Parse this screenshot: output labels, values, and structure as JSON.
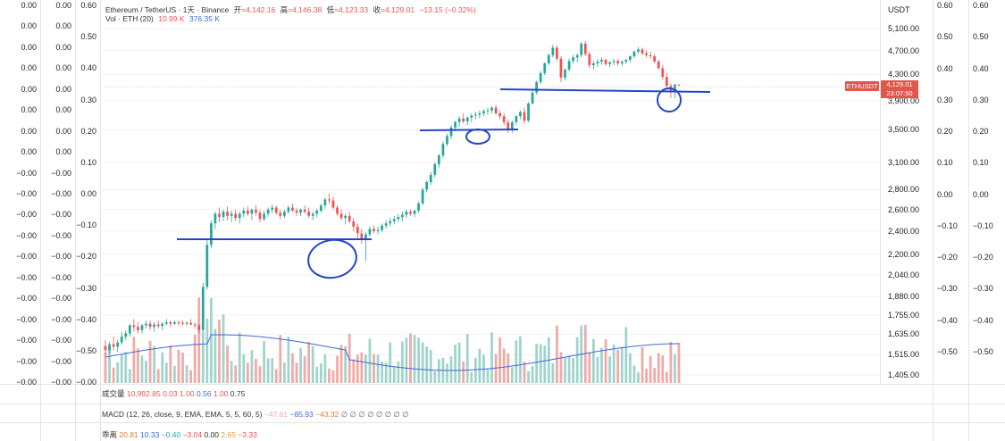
{
  "header": {
    "symbol": "Ethereum / TetherUS · 1天 · Binance",
    "open_label": "开",
    "open_value": "=4,142.16",
    "high_label": "高",
    "high_value": "=4,146.38",
    "low_label": "低",
    "low_value": "=4,123.33",
    "close_label": "收",
    "close_value": "=4,129.01",
    "change": "−13.15 (−0.32%)",
    "vol_label": "Vol · ETH (20)",
    "vol_value": "10.99 K",
    "vol_ma": "376.35 K"
  },
  "axis_currency": "USDT",
  "price_axis": [
    "5,100.00",
    "4,700.00",
    "4,300.00",
    "3,900.00",
    "3,500.00",
    "3,100.00",
    "2,800.00",
    "2,600.00",
    "2,400.00",
    "2,200.00",
    "2,040.00",
    "1,880.00",
    "1,755.00",
    "1,635.00",
    "1,515.00",
    "1,405.00"
  ],
  "symbol_tag": "ETHUSDT",
  "last_price": "4,129.01",
  "countdown": "23:07:50",
  "left_col1": [
    "0.00",
    "0.00",
    "0.00",
    "0.00",
    "0.00",
    "0.00",
    "0.00",
    "0.00",
    "−0.00",
    "−0.00",
    "−0.00",
    "−0.00",
    "−0.00",
    "−0.00",
    "−0.00",
    "−0.00",
    "−0.00",
    "−0.00",
    "−0.00"
  ],
  "left_col2": [
    "0.00",
    "0.00",
    "0.00",
    "0.00",
    "0.00",
    "0.00",
    "0.00",
    "0.00",
    "−0.00",
    "−0.00",
    "−0.00",
    "−0.00",
    "−0.00",
    "−0.00",
    "−0.00",
    "−0.00",
    "−0.00",
    "−0.00",
    "−0.00"
  ],
  "left_col3": [
    "0.60",
    "0.50",
    "0.40",
    "0.30",
    "0.20",
    "0.10",
    "0.00",
    "−0.10",
    "−0.20",
    "−0.30",
    "−0.40",
    "−0.50",
    "−0.00"
  ],
  "right_col1": [
    "0.60",
    "0.50",
    "0.40",
    "0.30",
    "0.20",
    "0.10",
    "0.00",
    "−0.10",
    "−0.20",
    "−0.30",
    "−0.40",
    "−0.50"
  ],
  "right_col2": [
    "0.60",
    "0.50",
    "0.40",
    "0.30",
    "0.20",
    "0.10",
    "0.00",
    "−0.10",
    "−0.20",
    "−0.30",
    "−0.40",
    "−0.50"
  ],
  "panels": {
    "volume_label": "成交量",
    "volume_values": [
      "10,992.85",
      "0.03",
      "1.00",
      "0.56",
      "1.00",
      "0.75"
    ],
    "macd_label": "MACD (12, 26, close, 9, EMA, EMA, 5, 5, 60, 5)",
    "macd_values": [
      "−47.61",
      "−85.93",
      "−43.32"
    ],
    "macd_empty": "∅ ∅ ∅ ∅ ∅ ∅ ∅ ∅",
    "third_label": "乖离",
    "third_values": [
      "20.81",
      "10.33",
      "−0.40",
      "−3.04",
      "0.00",
      "2.65",
      "−3.33"
    ]
  },
  "colors": {
    "up": "#26a69a",
    "down": "#ef5350",
    "ma": "#3f6ad8",
    "annotation": "#2347c8"
  },
  "chart_data": {
    "type": "candlestick",
    "title": "Ethereum / TetherUS · 1天 · Binance",
    "ylabel": "USDT",
    "y_scale": "log",
    "ylim": [
      1405,
      5100
    ],
    "candles_ohlc": [
      [
        1565,
        1600,
        1510,
        1540
      ],
      [
        1540,
        1590,
        1520,
        1575
      ],
      [
        1575,
        1620,
        1540,
        1560
      ],
      [
        1560,
        1600,
        1530,
        1585
      ],
      [
        1585,
        1650,
        1570,
        1620
      ],
      [
        1620,
        1660,
        1600,
        1640
      ],
      [
        1640,
        1700,
        1620,
        1690
      ],
      [
        1690,
        1730,
        1650,
        1680
      ],
      [
        1680,
        1710,
        1640,
        1660
      ],
      [
        1660,
        1700,
        1640,
        1690
      ],
      [
        1690,
        1720,
        1670,
        1700
      ],
      [
        1700,
        1720,
        1660,
        1680
      ],
      [
        1680,
        1710,
        1650,
        1695
      ],
      [
        1695,
        1720,
        1670,
        1685
      ],
      [
        1685,
        1710,
        1660,
        1700
      ],
      [
        1700,
        1730,
        1690,
        1710
      ],
      [
        1710,
        1720,
        1680,
        1700
      ],
      [
        1700,
        1720,
        1690,
        1710
      ],
      [
        1710,
        1720,
        1690,
        1705
      ],
      [
        1705,
        1720,
        1690,
        1700
      ],
      [
        1700,
        1715,
        1690,
        1705
      ],
      [
        1705,
        1730,
        1690,
        1695
      ],
      [
        1695,
        1710,
        1670,
        1690
      ],
      [
        1690,
        1700,
        1640,
        1660
      ],
      [
        1660,
        1980,
        1650,
        1950
      ],
      [
        1950,
        2320,
        1930,
        2280
      ],
      [
        2280,
        2500,
        2250,
        2470
      ],
      [
        2470,
        2580,
        2420,
        2560
      ],
      [
        2560,
        2620,
        2480,
        2530
      ],
      [
        2530,
        2600,
        2490,
        2580
      ],
      [
        2580,
        2630,
        2500,
        2540
      ],
      [
        2540,
        2590,
        2480,
        2560
      ],
      [
        2560,
        2600,
        2490,
        2520
      ],
      [
        2520,
        2580,
        2470,
        2560
      ],
      [
        2560,
        2620,
        2530,
        2590
      ],
      [
        2590,
        2630,
        2540,
        2560
      ],
      [
        2560,
        2610,
        2500,
        2600
      ],
      [
        2600,
        2640,
        2540,
        2570
      ],
      [
        2570,
        2600,
        2480,
        2510
      ],
      [
        2510,
        2590,
        2490,
        2560
      ],
      [
        2560,
        2620,
        2530,
        2600
      ],
      [
        2600,
        2650,
        2560,
        2620
      ],
      [
        2620,
        2640,
        2550,
        2570
      ],
      [
        2570,
        2600,
        2510,
        2540
      ],
      [
        2540,
        2600,
        2520,
        2580
      ],
      [
        2580,
        2640,
        2560,
        2620
      ],
      [
        2620,
        2660,
        2580,
        2590
      ],
      [
        2590,
        2620,
        2540,
        2570
      ],
      [
        2570,
        2610,
        2540,
        2600
      ],
      [
        2600,
        2640,
        2560,
        2580
      ],
      [
        2580,
        2620,
        2520,
        2540
      ],
      [
        2540,
        2580,
        2500,
        2560
      ],
      [
        2560,
        2610,
        2530,
        2590
      ],
      [
        2590,
        2660,
        2570,
        2640
      ],
      [
        2640,
        2720,
        2610,
        2700
      ],
      [
        2700,
        2760,
        2660,
        2690
      ],
      [
        2690,
        2730,
        2600,
        2620
      ],
      [
        2620,
        2640,
        2540,
        2560
      ],
      [
        2560,
        2600,
        2500,
        2520
      ],
      [
        2520,
        2560,
        2460,
        2540
      ],
      [
        2540,
        2580,
        2470,
        2490
      ],
      [
        2490,
        2520,
        2400,
        2440
      ],
      [
        2440,
        2470,
        2320,
        2380
      ],
      [
        2380,
        2420,
        2290,
        2330
      ],
      [
        2330,
        2390,
        2150,
        2370
      ],
      [
        2370,
        2440,
        2350,
        2420
      ],
      [
        2420,
        2450,
        2380,
        2400
      ],
      [
        2400,
        2440,
        2370,
        2410
      ],
      [
        2410,
        2470,
        2390,
        2450
      ],
      [
        2450,
        2500,
        2420,
        2470
      ],
      [
        2470,
        2520,
        2440,
        2490
      ],
      [
        2490,
        2540,
        2460,
        2510
      ],
      [
        2510,
        2560,
        2480,
        2530
      ],
      [
        2530,
        2580,
        2490,
        2550
      ],
      [
        2550,
        2600,
        2520,
        2580
      ],
      [
        2580,
        2600,
        2540,
        2560
      ],
      [
        2560,
        2600,
        2530,
        2590
      ],
      [
        2590,
        2680,
        2570,
        2660
      ],
      [
        2660,
        2820,
        2640,
        2800
      ],
      [
        2800,
        2900,
        2770,
        2880
      ],
      [
        2880,
        2990,
        2850,
        2960
      ],
      [
        2960,
        3100,
        2930,
        3080
      ],
      [
        3080,
        3200,
        3040,
        3180
      ],
      [
        3180,
        3350,
        3150,
        3320
      ],
      [
        3320,
        3450,
        3290,
        3420
      ],
      [
        3420,
        3560,
        3380,
        3530
      ],
      [
        3530,
        3620,
        3480,
        3600
      ],
      [
        3600,
        3680,
        3540,
        3650
      ],
      [
        3650,
        3720,
        3580,
        3610
      ],
      [
        3610,
        3680,
        3560,
        3660
      ],
      [
        3660,
        3720,
        3600,
        3690
      ],
      [
        3690,
        3740,
        3640,
        3700
      ],
      [
        3700,
        3760,
        3650,
        3720
      ],
      [
        3720,
        3780,
        3680,
        3750
      ],
      [
        3750,
        3800,
        3700,
        3760
      ],
      [
        3760,
        3820,
        3720,
        3800
      ],
      [
        3800,
        3840,
        3700,
        3720
      ],
      [
        3720,
        3760,
        3640,
        3680
      ],
      [
        3680,
        3720,
        3560,
        3600
      ],
      [
        3600,
        3640,
        3460,
        3500
      ],
      [
        3500,
        3620,
        3460,
        3600
      ],
      [
        3600,
        3700,
        3560,
        3680
      ],
      [
        3680,
        3760,
        3640,
        3740
      ],
      [
        3740,
        3800,
        3580,
        3620
      ],
      [
        3620,
        3880,
        3600,
        3860
      ],
      [
        3860,
        4050,
        3840,
        4020
      ],
      [
        4020,
        4200,
        3990,
        4180
      ],
      [
        4180,
        4350,
        4150,
        4320
      ],
      [
        4320,
        4500,
        4290,
        4480
      ],
      [
        4480,
        4650,
        4450,
        4620
      ],
      [
        4620,
        4800,
        4580,
        4750
      ],
      [
        4750,
        4790,
        4520,
        4560
      ],
      [
        4560,
        4600,
        4180,
        4250
      ],
      [
        4250,
        4400,
        4200,
        4380
      ],
      [
        4380,
        4560,
        4350,
        4520
      ],
      [
        4520,
        4620,
        4480,
        4580
      ],
      [
        4580,
        4650,
        4500,
        4620
      ],
      [
        4620,
        4850,
        4580,
        4820
      ],
      [
        4820,
        4870,
        4600,
        4640
      ],
      [
        4640,
        4680,
        4400,
        4450
      ],
      [
        4450,
        4520,
        4380,
        4480
      ],
      [
        4480,
        4550,
        4420,
        4510
      ],
      [
        4510,
        4580,
        4460,
        4540
      ],
      [
        4540,
        4560,
        4440,
        4470
      ],
      [
        4470,
        4520,
        4420,
        4500
      ],
      [
        4500,
        4560,
        4450,
        4520
      ],
      [
        4520,
        4560,
        4440,
        4480
      ],
      [
        4480,
        4530,
        4430,
        4510
      ],
      [
        4510,
        4560,
        4470,
        4540
      ],
      [
        4540,
        4620,
        4500,
        4600
      ],
      [
        4600,
        4700,
        4570,
        4680
      ],
      [
        4680,
        4760,
        4640,
        4720
      ],
      [
        4720,
        4750,
        4620,
        4650
      ],
      [
        4650,
        4700,
        4580,
        4620
      ],
      [
        4620,
        4680,
        4560,
        4600
      ],
      [
        4600,
        4640,
        4480,
        4510
      ],
      [
        4510,
        4540,
        4380,
        4400
      ],
      [
        4400,
        4450,
        4220,
        4260
      ],
      [
        4260,
        4320,
        4080,
        4120
      ],
      [
        4120,
        4160,
        3940,
        4050
      ],
      [
        4050,
        4150,
        3930,
        4142
      ],
      [
        4142,
        4146,
        4123,
        4129
      ]
    ],
    "annotations": [
      "support line ~2,400",
      "support line ~3,500",
      "support line ~4,250",
      "circled retests"
    ]
  }
}
